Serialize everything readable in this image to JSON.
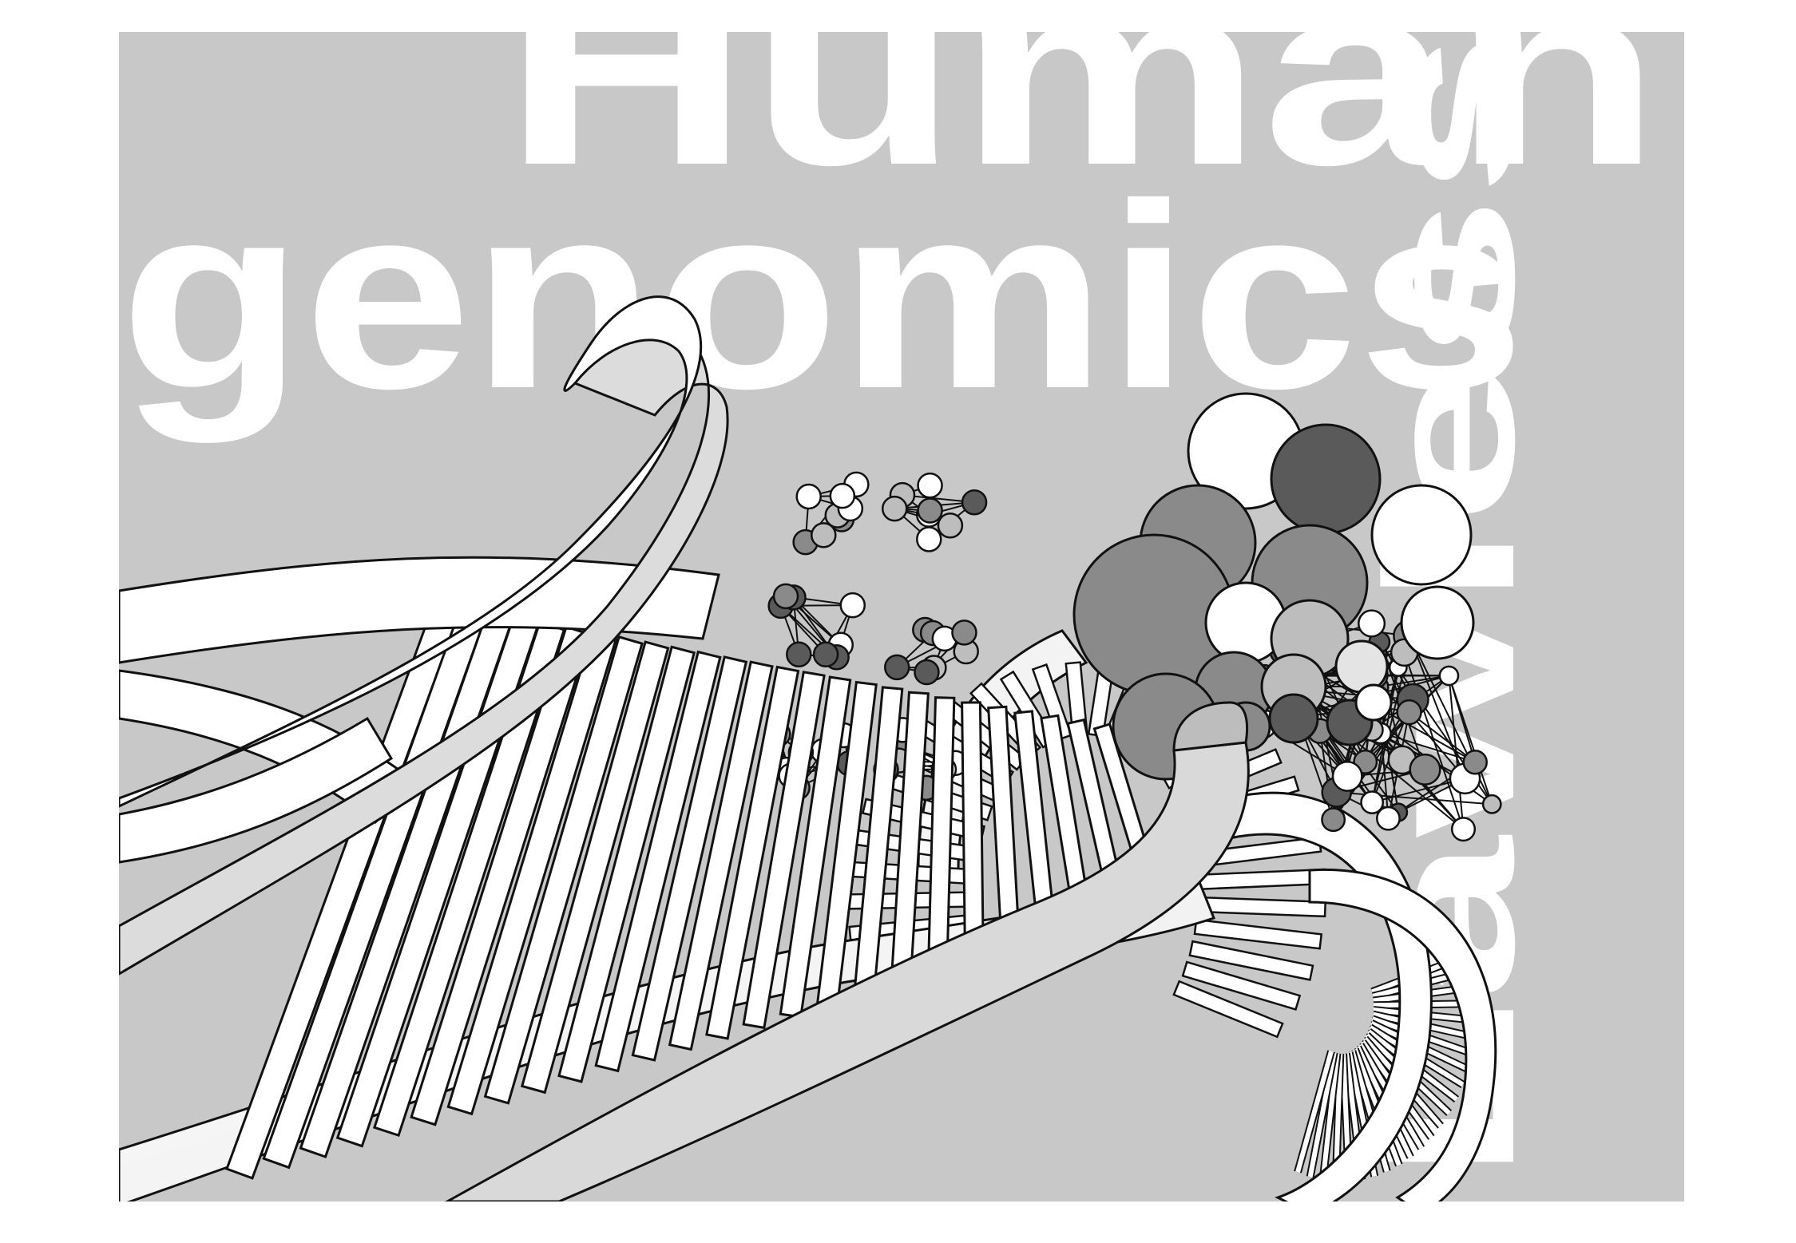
{
  "title": {
    "line1": "Human",
    "line2": "genomics",
    "vertical": "Lawless"
  },
  "colors": {
    "panel": "#c8c8c8",
    "text": "#ffffff",
    "outline": "#111111",
    "dark_node": "#5a5a5a",
    "mid_node": "#8a8a8a",
    "light_node": "#bdbdbd"
  }
}
